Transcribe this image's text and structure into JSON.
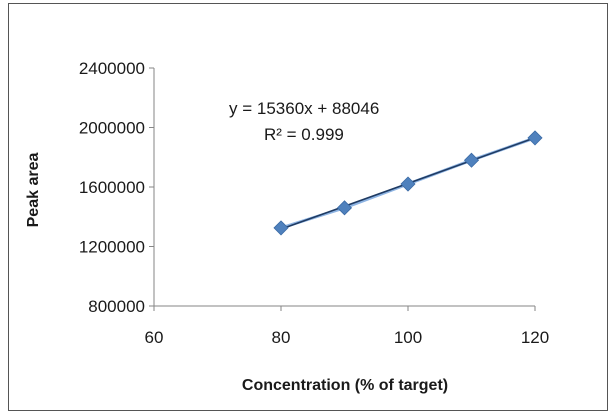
{
  "chart_data": {
    "type": "scatter",
    "xlabel": "Concentration (% of target)",
    "ylabel": "Peak area",
    "xlim": [
      60,
      120
    ],
    "ylim": [
      800000,
      2400000
    ],
    "x_ticks": [
      60,
      80,
      100,
      120
    ],
    "y_ticks": [
      800000,
      1200000,
      1600000,
      2000000,
      2400000
    ],
    "grid": false,
    "legend": "none",
    "series": [
      {
        "x": [
          80,
          90,
          100,
          110,
          120
        ],
        "y": [
          1325000,
          1460000,
          1620000,
          1780000,
          1930000
        ],
        "marker": "diamond",
        "color": "#4f81bd"
      }
    ],
    "trendline": {
      "type": "linear",
      "slope": 15360,
      "intercept": 88046,
      "color": "#1f3b63",
      "x_range": [
        80,
        120
      ]
    },
    "annotations": {
      "equation": "y = 15360x + 88046",
      "r_squared": "R² = 0.999"
    }
  }
}
